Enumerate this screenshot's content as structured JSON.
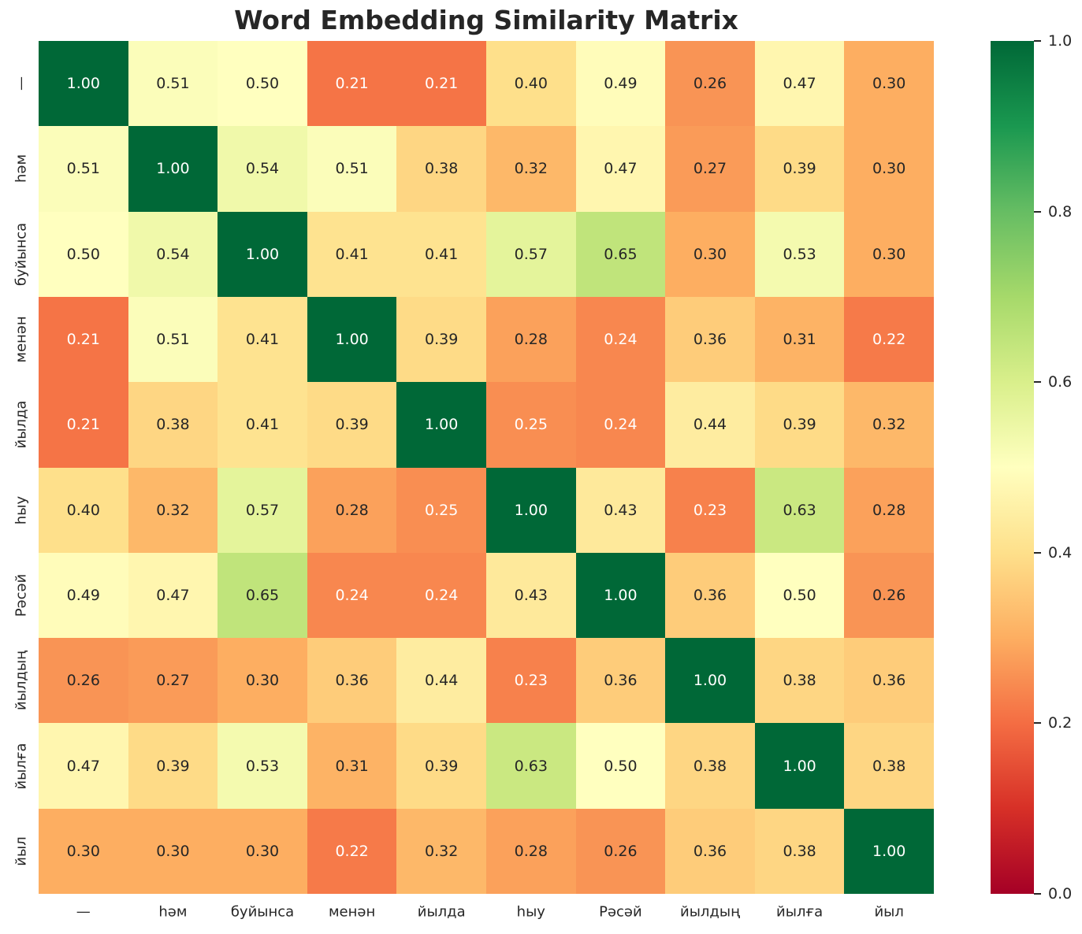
{
  "page": {
    "background": "#ffffff"
  },
  "chart_data": {
    "type": "heatmap",
    "title": "Word Embedding Similarity Matrix",
    "x_labels": [
      "—",
      "һәм",
      "буйынса",
      "менән",
      "йылда",
      "һыу",
      "Рәсәй",
      "йылдың",
      "йылға",
      "йыл"
    ],
    "y_labels": [
      "—",
      "һәм",
      "буйынса",
      "менән",
      "йылда",
      "һыу",
      "Рәсәй",
      "йылдың",
      "йылға",
      "йыл"
    ],
    "matrix": [
      [
        1.0,
        0.51,
        0.5,
        0.21,
        0.21,
        0.4,
        0.49,
        0.26,
        0.47,
        0.3
      ],
      [
        0.51,
        1.0,
        0.54,
        0.51,
        0.38,
        0.32,
        0.47,
        0.27,
        0.39,
        0.3
      ],
      [
        0.5,
        0.54,
        1.0,
        0.41,
        0.41,
        0.57,
        0.65,
        0.3,
        0.53,
        0.3
      ],
      [
        0.21,
        0.51,
        0.41,
        1.0,
        0.39,
        0.28,
        0.24,
        0.36,
        0.31,
        0.22
      ],
      [
        0.21,
        0.38,
        0.41,
        0.39,
        1.0,
        0.25,
        0.24,
        0.44,
        0.39,
        0.32
      ],
      [
        0.4,
        0.32,
        0.57,
        0.28,
        0.25,
        1.0,
        0.43,
        0.23,
        0.63,
        0.28
      ],
      [
        0.49,
        0.47,
        0.65,
        0.24,
        0.24,
        0.43,
        1.0,
        0.36,
        0.5,
        0.26
      ],
      [
        0.26,
        0.27,
        0.3,
        0.36,
        0.44,
        0.23,
        0.36,
        1.0,
        0.38,
        0.36
      ],
      [
        0.47,
        0.39,
        0.53,
        0.31,
        0.39,
        0.63,
        0.5,
        0.38,
        1.0,
        0.38
      ],
      [
        0.3,
        0.3,
        0.3,
        0.22,
        0.32,
        0.28,
        0.26,
        0.36,
        0.38,
        1.0
      ]
    ],
    "value_decimals": 2,
    "vmin": 0.0,
    "vmax": 1.0,
    "grid": false,
    "legend_position": "right-colorbar",
    "colormap": {
      "name": "RdYlGn",
      "stops": [
        "#a50026",
        "#d73027",
        "#f46d43",
        "#fdae61",
        "#fee08b",
        "#ffffbf",
        "#d9ef8b",
        "#a6d96a",
        "#66bd63",
        "#1a9850",
        "#006837"
      ]
    },
    "colorbar_ticks": [
      {
        "value": 1.0,
        "label": "1.0"
      },
      {
        "value": 0.8,
        "label": "0.8"
      },
      {
        "value": 0.6,
        "label": "0.6"
      },
      {
        "value": 0.4,
        "label": "0.4"
      },
      {
        "value": 0.2,
        "label": "0.2"
      },
      {
        "value": 0.0,
        "label": "0.0"
      }
    ],
    "annotation_colors": {
      "light": "#ffffff",
      "dark": "#262626"
    }
  }
}
